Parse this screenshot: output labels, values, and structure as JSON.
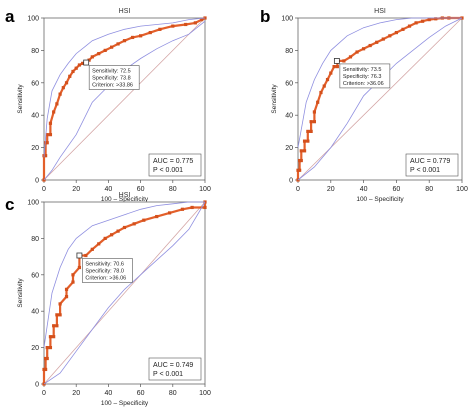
{
  "colors": {
    "roc": "#e35f2a",
    "roc_marker": "#d4501c",
    "ci": "#8f8fe0",
    "diagonal": "#d4a6a6",
    "box_border": "#555555"
  },
  "chart_data": [
    {
      "type": "line",
      "panel": "a",
      "title": "HSI",
      "xlabel": "100 – Specificity",
      "ylabel": "Sensitivity",
      "xlim": [
        0,
        100
      ],
      "ylim": [
        0,
        100
      ],
      "xticks": [
        "0",
        "20",
        "40",
        "60",
        "80",
        "100"
      ],
      "yticks": [
        "0",
        "20",
        "40",
        "60",
        "80",
        "100"
      ],
      "criterion_box": [
        "Sensitivity: 72.5",
        "Specificity: 73.8",
        "Criterion: >33.86"
      ],
      "auc_box": [
        "AUC = 0.775",
        "P < 0.001"
      ],
      "criterion_point": [
        26.2,
        72.5
      ],
      "series": [
        {
          "role": "roc",
          "x": [
            0,
            0,
            1,
            1,
            2,
            2,
            4,
            4,
            6,
            8,
            10,
            12,
            14,
            16,
            18,
            20,
            22,
            24,
            26,
            28,
            30,
            34,
            38,
            42,
            46,
            50,
            55,
            60,
            66,
            72,
            80,
            88,
            94,
            98,
            100
          ],
          "y": [
            0,
            15,
            15,
            23,
            23,
            28,
            28,
            35,
            42,
            47,
            53,
            57,
            60,
            64,
            67,
            69,
            71,
            72,
            72.5,
            74,
            76,
            78,
            80,
            82,
            84,
            86,
            88,
            89,
            91,
            93,
            95,
            96,
            97,
            99,
            100
          ]
        },
        {
          "role": "ci-upper",
          "x": [
            0,
            2,
            5,
            10,
            15,
            20,
            25,
            30,
            40,
            50,
            60,
            70,
            80,
            90,
            100
          ],
          "y": [
            14,
            38,
            55,
            65,
            72,
            78,
            82,
            86,
            90,
            93,
            95,
            96,
            97,
            99,
            100
          ]
        },
        {
          "role": "ci-lower",
          "x": [
            0,
            5,
            10,
            20,
            30,
            40,
            50,
            60,
            70,
            80,
            90,
            100
          ],
          "y": [
            0,
            6,
            14,
            28,
            48,
            58,
            68,
            75,
            81,
            86,
            90,
            98
          ]
        }
      ]
    },
    {
      "type": "line",
      "panel": "b",
      "title": "HSI",
      "xlabel": "100 – Specificity",
      "ylabel": "Sensitivity",
      "xlim": [
        0,
        100
      ],
      "ylim": [
        0,
        100
      ],
      "xticks": [
        "0",
        "20",
        "40",
        "60",
        "80",
        "100"
      ],
      "yticks": [
        "0",
        "20",
        "40",
        "60",
        "80",
        "100"
      ],
      "criterion_box": [
        "Sensitivity: 73.5",
        "Specificity: 76.3",
        "Criterion: >36.06"
      ],
      "auc_box": [
        "AUC = 0.779",
        "P < 0.001"
      ],
      "criterion_point": [
        23.7,
        73.5
      ],
      "series": [
        {
          "role": "roc",
          "x": [
            0,
            0,
            1,
            1,
            2,
            2,
            4,
            4,
            6,
            6,
            8,
            8,
            10,
            10,
            12,
            14,
            16,
            18,
            20,
            22,
            24,
            24,
            28,
            32,
            36,
            40,
            44,
            48,
            52,
            56,
            60,
            64,
            68,
            72,
            76,
            80,
            84,
            88,
            92,
            100
          ],
          "y": [
            0,
            6,
            6,
            12,
            12,
            18,
            18,
            24,
            24,
            30,
            30,
            36,
            36,
            42,
            48,
            54,
            58,
            62,
            66,
            70,
            70,
            73.5,
            73.5,
            76,
            79,
            81,
            83,
            85,
            87,
            89,
            91,
            93,
            95,
            97,
            98,
            99,
            99.5,
            100,
            100,
            100
          ]
        },
        {
          "role": "ci-upper",
          "x": [
            0,
            5,
            10,
            15,
            20,
            30,
            40,
            50,
            60,
            70,
            100
          ],
          "y": [
            20,
            48,
            62,
            72,
            80,
            89,
            94,
            97,
            99,
            100,
            100
          ]
        },
        {
          "role": "ci-lower",
          "x": [
            0,
            10,
            20,
            30,
            40,
            50,
            60,
            70,
            80,
            90,
            100
          ],
          "y": [
            0,
            8,
            20,
            35,
            52,
            62,
            72,
            80,
            88,
            95,
            100
          ]
        }
      ]
    },
    {
      "type": "line",
      "panel": "c",
      "title": "HSI",
      "xlabel": "100 – Specificity",
      "ylabel": "Sensitivity",
      "xlim": [
        0,
        100
      ],
      "ylim": [
        0,
        100
      ],
      "xticks": [
        "0",
        "20",
        "40",
        "60",
        "80",
        "100"
      ],
      "yticks": [
        "0",
        "20",
        "40",
        "60",
        "80",
        "100"
      ],
      "criterion_box": [
        "Sensitivity: 70.6",
        "Specificity: 78.0",
        "Criterion: >36.06"
      ],
      "auc_box": [
        "AUC = 0.749",
        "P < 0.001"
      ],
      "criterion_point": [
        22.0,
        70.6
      ],
      "series": [
        {
          "role": "roc",
          "x": [
            0,
            0,
            1,
            1,
            2,
            2,
            4,
            4,
            6,
            6,
            8,
            8,
            10,
            10,
            14,
            14,
            18,
            18,
            22,
            22,
            26,
            30,
            34,
            38,
            42,
            46,
            50,
            56,
            62,
            70,
            78,
            86,
            92,
            100,
            100
          ],
          "y": [
            0,
            8,
            8,
            14,
            14,
            20,
            20,
            26,
            26,
            32,
            32,
            38,
            38,
            44,
            48,
            52,
            56,
            60,
            64,
            70.6,
            70.6,
            74,
            77,
            80,
            82,
            84,
            86,
            88,
            90,
            92,
            94,
            96,
            97,
            97,
            100
          ]
        },
        {
          "role": "ci-upper",
          "x": [
            0,
            5,
            10,
            15,
            20,
            30,
            40,
            50,
            60,
            70,
            80,
            90,
            100
          ],
          "y": [
            20,
            50,
            64,
            74,
            80,
            87,
            90,
            93,
            96,
            98,
            99,
            100,
            100
          ]
        },
        {
          "role": "ci-lower",
          "x": [
            0,
            10,
            20,
            30,
            40,
            50,
            60,
            70,
            80,
            90,
            100
          ],
          "y": [
            0,
            6,
            18,
            30,
            42,
            52,
            60,
            68,
            76,
            85,
            100
          ]
        }
      ]
    }
  ]
}
